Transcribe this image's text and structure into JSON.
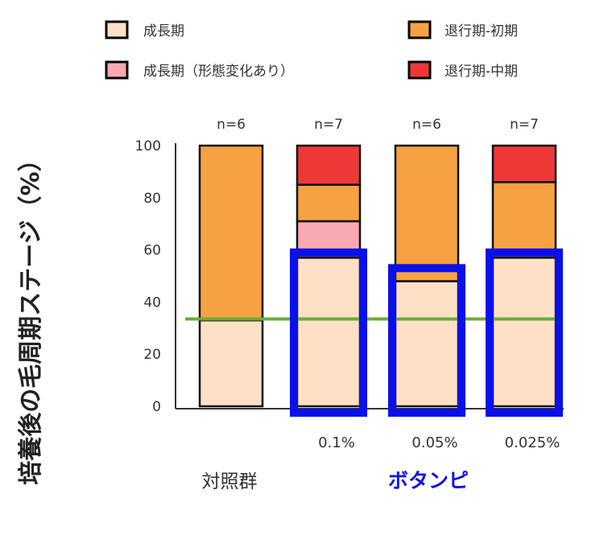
{
  "chart_data": {
    "type": "bar",
    "stacked": true,
    "ylabel": "培養後の毛周期ステージ（%）",
    "ylim": [
      0,
      100
    ],
    "yticks": [
      0,
      20,
      40,
      60,
      80,
      100
    ],
    "categories": [
      "",
      "0.1%",
      "0.05%",
      "0.025%"
    ],
    "n_labels": [
      "n=6",
      "n=7",
      "n=6",
      "n=7"
    ],
    "group_labels": [
      {
        "text": "対照群",
        "color": "#333333"
      },
      {
        "text": "ボタンピ",
        "color": "#1414e6"
      }
    ],
    "series": [
      {
        "name": "成長期",
        "color": "#fde0c5",
        "values": [
          33,
          57,
          48,
          57
        ]
      },
      {
        "name": "成長期（形態変化あり）",
        "color": "#f8a8b0",
        "values": [
          0,
          14,
          0,
          0
        ]
      },
      {
        "name": "退行期-初期",
        "color": "#f7a242",
        "values": [
          67,
          14,
          52,
          29
        ]
      },
      {
        "name": "退行期-中期",
        "color": "#ee3838",
        "values": [
          0,
          15,
          0,
          14
        ]
      }
    ],
    "reference_line": {
      "value": 33.5,
      "color": "#6aab3c"
    },
    "highlight": {
      "color": "#0a10e8",
      "categories": [
        1,
        2,
        3
      ],
      "levels": [
        59,
        53,
        59
      ]
    }
  }
}
